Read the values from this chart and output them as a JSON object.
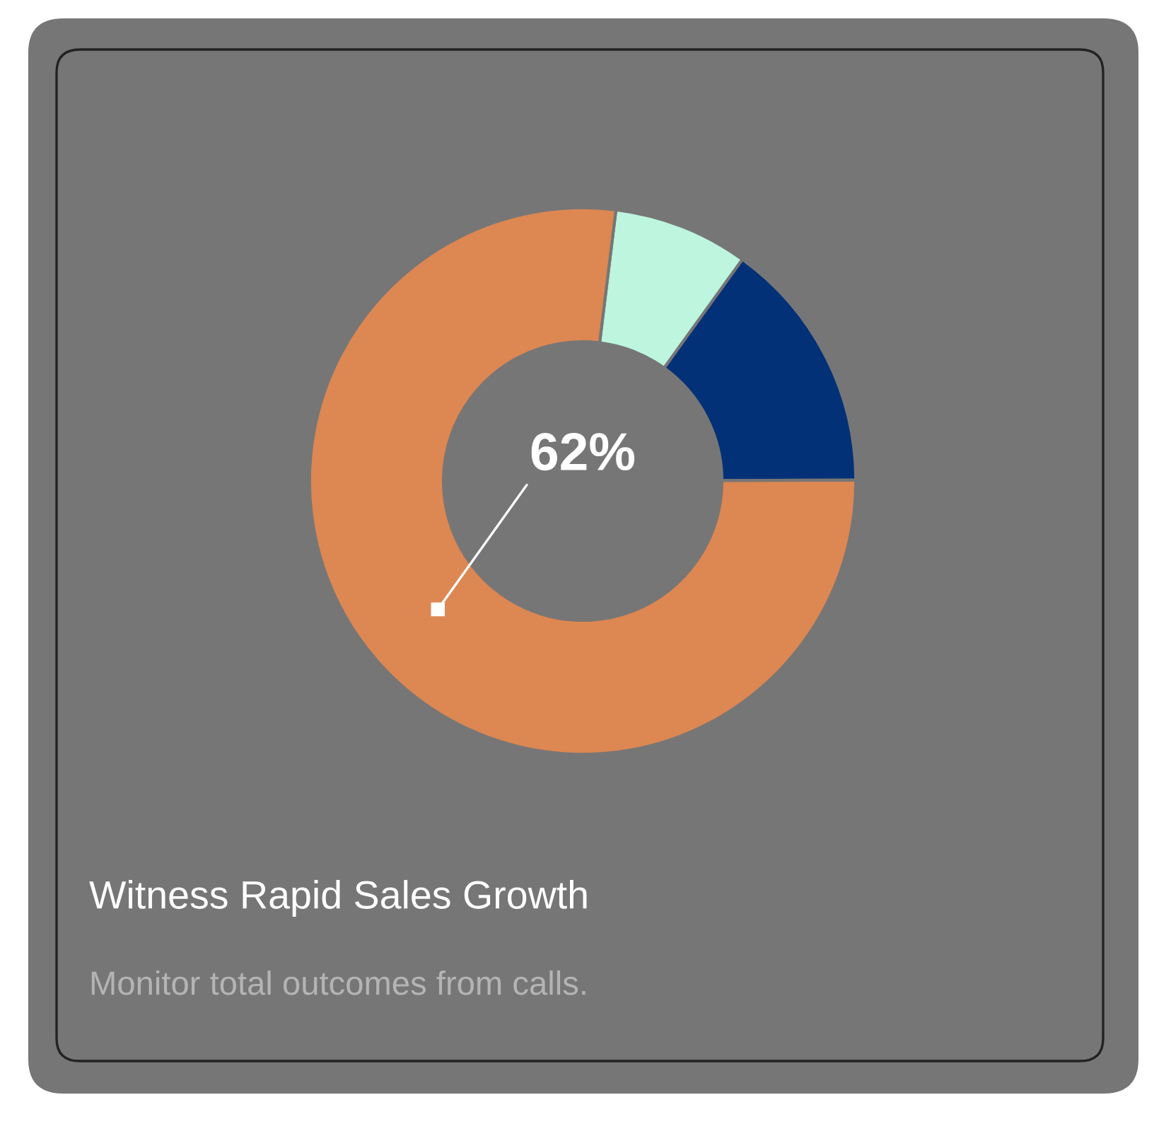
{
  "chart_data": {
    "type": "donut",
    "title": "Witness Rapid Sales Growth",
    "subtitle": "Monitor total outcomes from calls.",
    "categories": [
      null,
      null,
      null
    ],
    "values": [
      8,
      15,
      77
    ],
    "colors": [
      "#bdf5df",
      "#023177",
      "#dd8752"
    ],
    "annotations": [
      "62%"
    ],
    "legend": false
  }
}
